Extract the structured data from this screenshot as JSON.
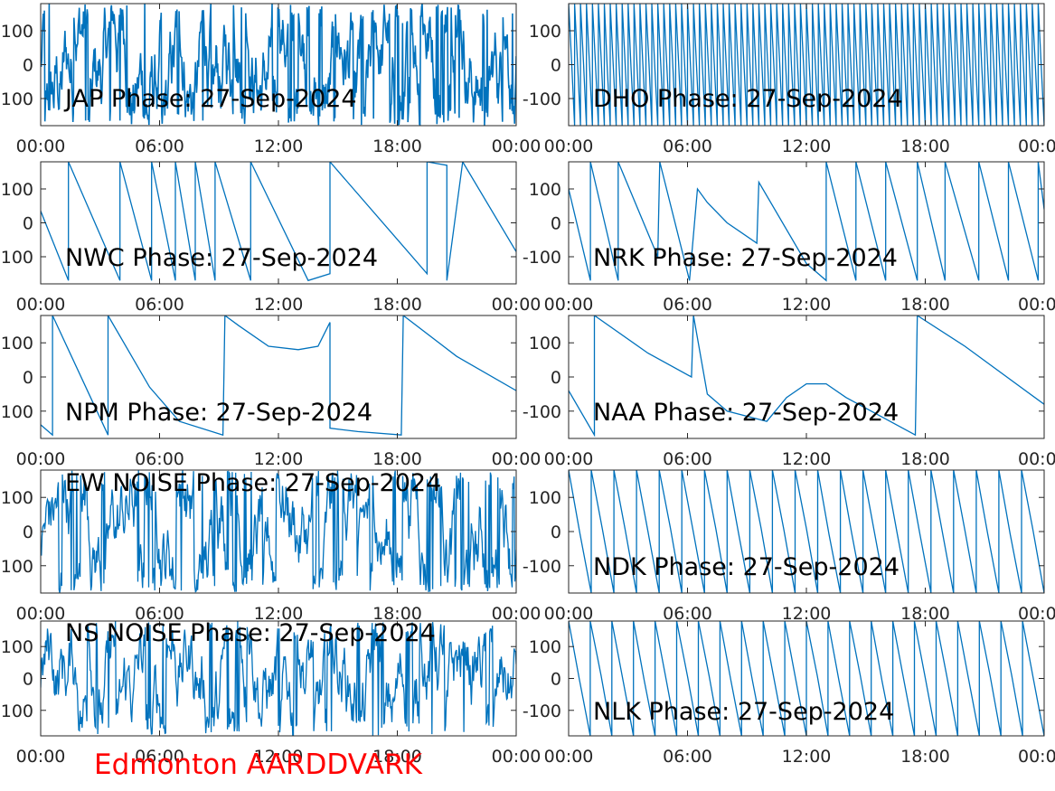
{
  "footer": "Edmonton AARDDVARK",
  "colors": {
    "line": "#0072bd",
    "axes": "#262626",
    "footer": "#ff0000"
  },
  "chart_data": [
    {
      "type": "line",
      "title": "JAP Phase: 27-Sep-2024",
      "signal": "noise-dense",
      "xticks": [
        "00:00",
        "06:00",
        "12:00",
        "18:00",
        "00:00"
      ],
      "yticks": [
        "100",
        "0",
        "100"
      ],
      "xlim": [
        0,
        24
      ],
      "ylim": [
        -180,
        180
      ]
    },
    {
      "type": "line",
      "title": "DHO Phase: 27-Sep-2024",
      "signal": "sawtooth-fast",
      "cycles": 80,
      "xticks": [
        "00:00",
        "06:00",
        "12:00",
        "18:00",
        "00:0"
      ],
      "yticks": [
        "100",
        "0",
        "-100"
      ],
      "xlim": [
        0,
        24
      ],
      "ylim": [
        -180,
        180
      ]
    },
    {
      "type": "line",
      "title": "NWC Phase: 27-Sep-2024",
      "signal": "sawtooth",
      "xticks": [
        "00:00",
        "06:00",
        "12:00",
        "18:00",
        "00:00"
      ],
      "yticks": [
        "100",
        "0",
        "100"
      ],
      "xlim": [
        0,
        24
      ],
      "ylim": [
        -180,
        180
      ],
      "points": [
        [
          0,
          35
        ],
        [
          1.4,
          -170
        ],
        [
          1.4,
          180
        ],
        [
          4,
          -170
        ],
        [
          4,
          180
        ],
        [
          5.6,
          -170
        ],
        [
          5.6,
          180
        ],
        [
          6.8,
          -170
        ],
        [
          6.8,
          180
        ],
        [
          7.8,
          -170
        ],
        [
          7.8,
          180
        ],
        [
          8.8,
          -170
        ],
        [
          8.8,
          180
        ],
        [
          10.6,
          -170
        ],
        [
          10.6,
          180
        ],
        [
          13.5,
          -170
        ],
        [
          14.6,
          -150
        ],
        [
          14.6,
          180
        ],
        [
          19.5,
          -150
        ],
        [
          19.5,
          180
        ],
        [
          20.5,
          170
        ],
        [
          20.5,
          -170
        ],
        [
          21.3,
          180
        ],
        [
          24,
          -85
        ]
      ]
    },
    {
      "type": "line",
      "title": "NRK Phase: 27-Sep-2024",
      "signal": "sawtooth",
      "xticks": [
        "00:00",
        "06:00",
        "12:00",
        "18:00",
        "00:0"
      ],
      "yticks": [
        "100",
        "0",
        "-100"
      ],
      "xlim": [
        0,
        24
      ],
      "ylim": [
        -180,
        180
      ],
      "points": [
        [
          0,
          100
        ],
        [
          1.1,
          -170
        ],
        [
          1.1,
          180
        ],
        [
          2.5,
          -170
        ],
        [
          2.5,
          180
        ],
        [
          4.5,
          -100
        ],
        [
          4.6,
          180
        ],
        [
          6.1,
          -170
        ],
        [
          6.5,
          100
        ],
        [
          7,
          60
        ],
        [
          8,
          0
        ],
        [
          9.5,
          -60
        ],
        [
          9.6,
          120
        ],
        [
          12,
          -120
        ],
        [
          13,
          -170
        ],
        [
          13,
          180
        ],
        [
          14.5,
          -170
        ],
        [
          14.5,
          180
        ],
        [
          16,
          -170
        ],
        [
          16,
          180
        ],
        [
          17.6,
          -170
        ],
        [
          17.6,
          180
        ],
        [
          19,
          -170
        ],
        [
          19,
          180
        ],
        [
          20.7,
          -170
        ],
        [
          20.7,
          180
        ],
        [
          22.2,
          -170
        ],
        [
          22.2,
          180
        ],
        [
          23.7,
          -170
        ],
        [
          23.7,
          180
        ],
        [
          24,
          40
        ]
      ]
    },
    {
      "type": "line",
      "title": "NPM Phase: 27-Sep-2024",
      "signal": "sawtooth",
      "xticks": [
        "00:00",
        "06:00",
        "12:00",
        "18:00",
        "00:00"
      ],
      "yticks": [
        "100",
        "0",
        "100"
      ],
      "xlim": [
        0,
        24
      ],
      "ylim": [
        -180,
        180
      ],
      "points": [
        [
          0,
          -140
        ],
        [
          0.6,
          -170
        ],
        [
          0.6,
          180
        ],
        [
          3.4,
          -170
        ],
        [
          3.4,
          180
        ],
        [
          5.5,
          -30
        ],
        [
          7,
          -130
        ],
        [
          9.2,
          -170
        ],
        [
          9.3,
          180
        ],
        [
          10,
          150
        ],
        [
          11.5,
          90
        ],
        [
          13,
          80
        ],
        [
          14,
          90
        ],
        [
          14.6,
          160
        ],
        [
          14.6,
          -150
        ],
        [
          16,
          -160
        ],
        [
          18.2,
          -170
        ],
        [
          18.3,
          180
        ],
        [
          21,
          60
        ],
        [
          24,
          -40
        ]
      ]
    },
    {
      "type": "line",
      "title": "NAA Phase: 27-Sep-2024",
      "signal": "sawtooth",
      "xticks": [
        "00:00",
        "06:00",
        "12:00",
        "18:00",
        "00:0"
      ],
      "yticks": [
        "100",
        "0",
        "-100"
      ],
      "xlim": [
        0,
        24
      ],
      "ylim": [
        -180,
        180
      ],
      "points": [
        [
          0,
          -40
        ],
        [
          1.3,
          -170
        ],
        [
          1.3,
          180
        ],
        [
          4,
          70
        ],
        [
          6.2,
          0
        ],
        [
          6.3,
          180
        ],
        [
          7,
          -50
        ],
        [
          8,
          -100
        ],
        [
          10,
          -130
        ],
        [
          11,
          -60
        ],
        [
          12,
          -20
        ],
        [
          13,
          -20
        ],
        [
          14,
          -60
        ],
        [
          17.5,
          -170
        ],
        [
          17.6,
          180
        ],
        [
          20,
          90
        ],
        [
          24,
          -80
        ]
      ]
    },
    {
      "type": "line",
      "title": "EW NOISE Phase: 27-Sep-2024",
      "signal": "noise",
      "xticks": [
        "00:00",
        "06:00",
        "12:00",
        "18:00",
        "00:00"
      ],
      "yticks": [
        "100",
        "0",
        "100"
      ],
      "xlim": [
        0,
        24
      ],
      "ylim": [
        -180,
        180
      ]
    },
    {
      "type": "line",
      "title": "NDK Phase: 27-Sep-2024",
      "signal": "sawtooth-fast",
      "cycles": 21,
      "xticks": [
        "00:00",
        "06:00",
        "12:00",
        "18:00",
        "00:0"
      ],
      "yticks": [
        "100",
        "0",
        "-100"
      ],
      "xlim": [
        0,
        24
      ],
      "ylim": [
        -180,
        180
      ]
    },
    {
      "type": "line",
      "title": "NS NOISE Phase: 27-Sep-2024",
      "signal": "noise",
      "xticks": [
        "00:00",
        "06:00",
        "12:00",
        "18:00",
        "00:00"
      ],
      "yticks": [
        "100",
        "0",
        "100"
      ],
      "xlim": [
        0,
        24
      ],
      "ylim": [
        -180,
        180
      ]
    },
    {
      "type": "line",
      "title": "NLK Phase: 27-Sep-2024",
      "signal": "sawtooth-fast",
      "cycles": 22,
      "xticks": [
        "00:00",
        "06:00",
        "12:00",
        "18:00",
        "00:0"
      ],
      "yticks": [
        "100",
        "0",
        "-100"
      ],
      "xlim": [
        0,
        24
      ],
      "ylim": [
        -180,
        180
      ]
    }
  ]
}
